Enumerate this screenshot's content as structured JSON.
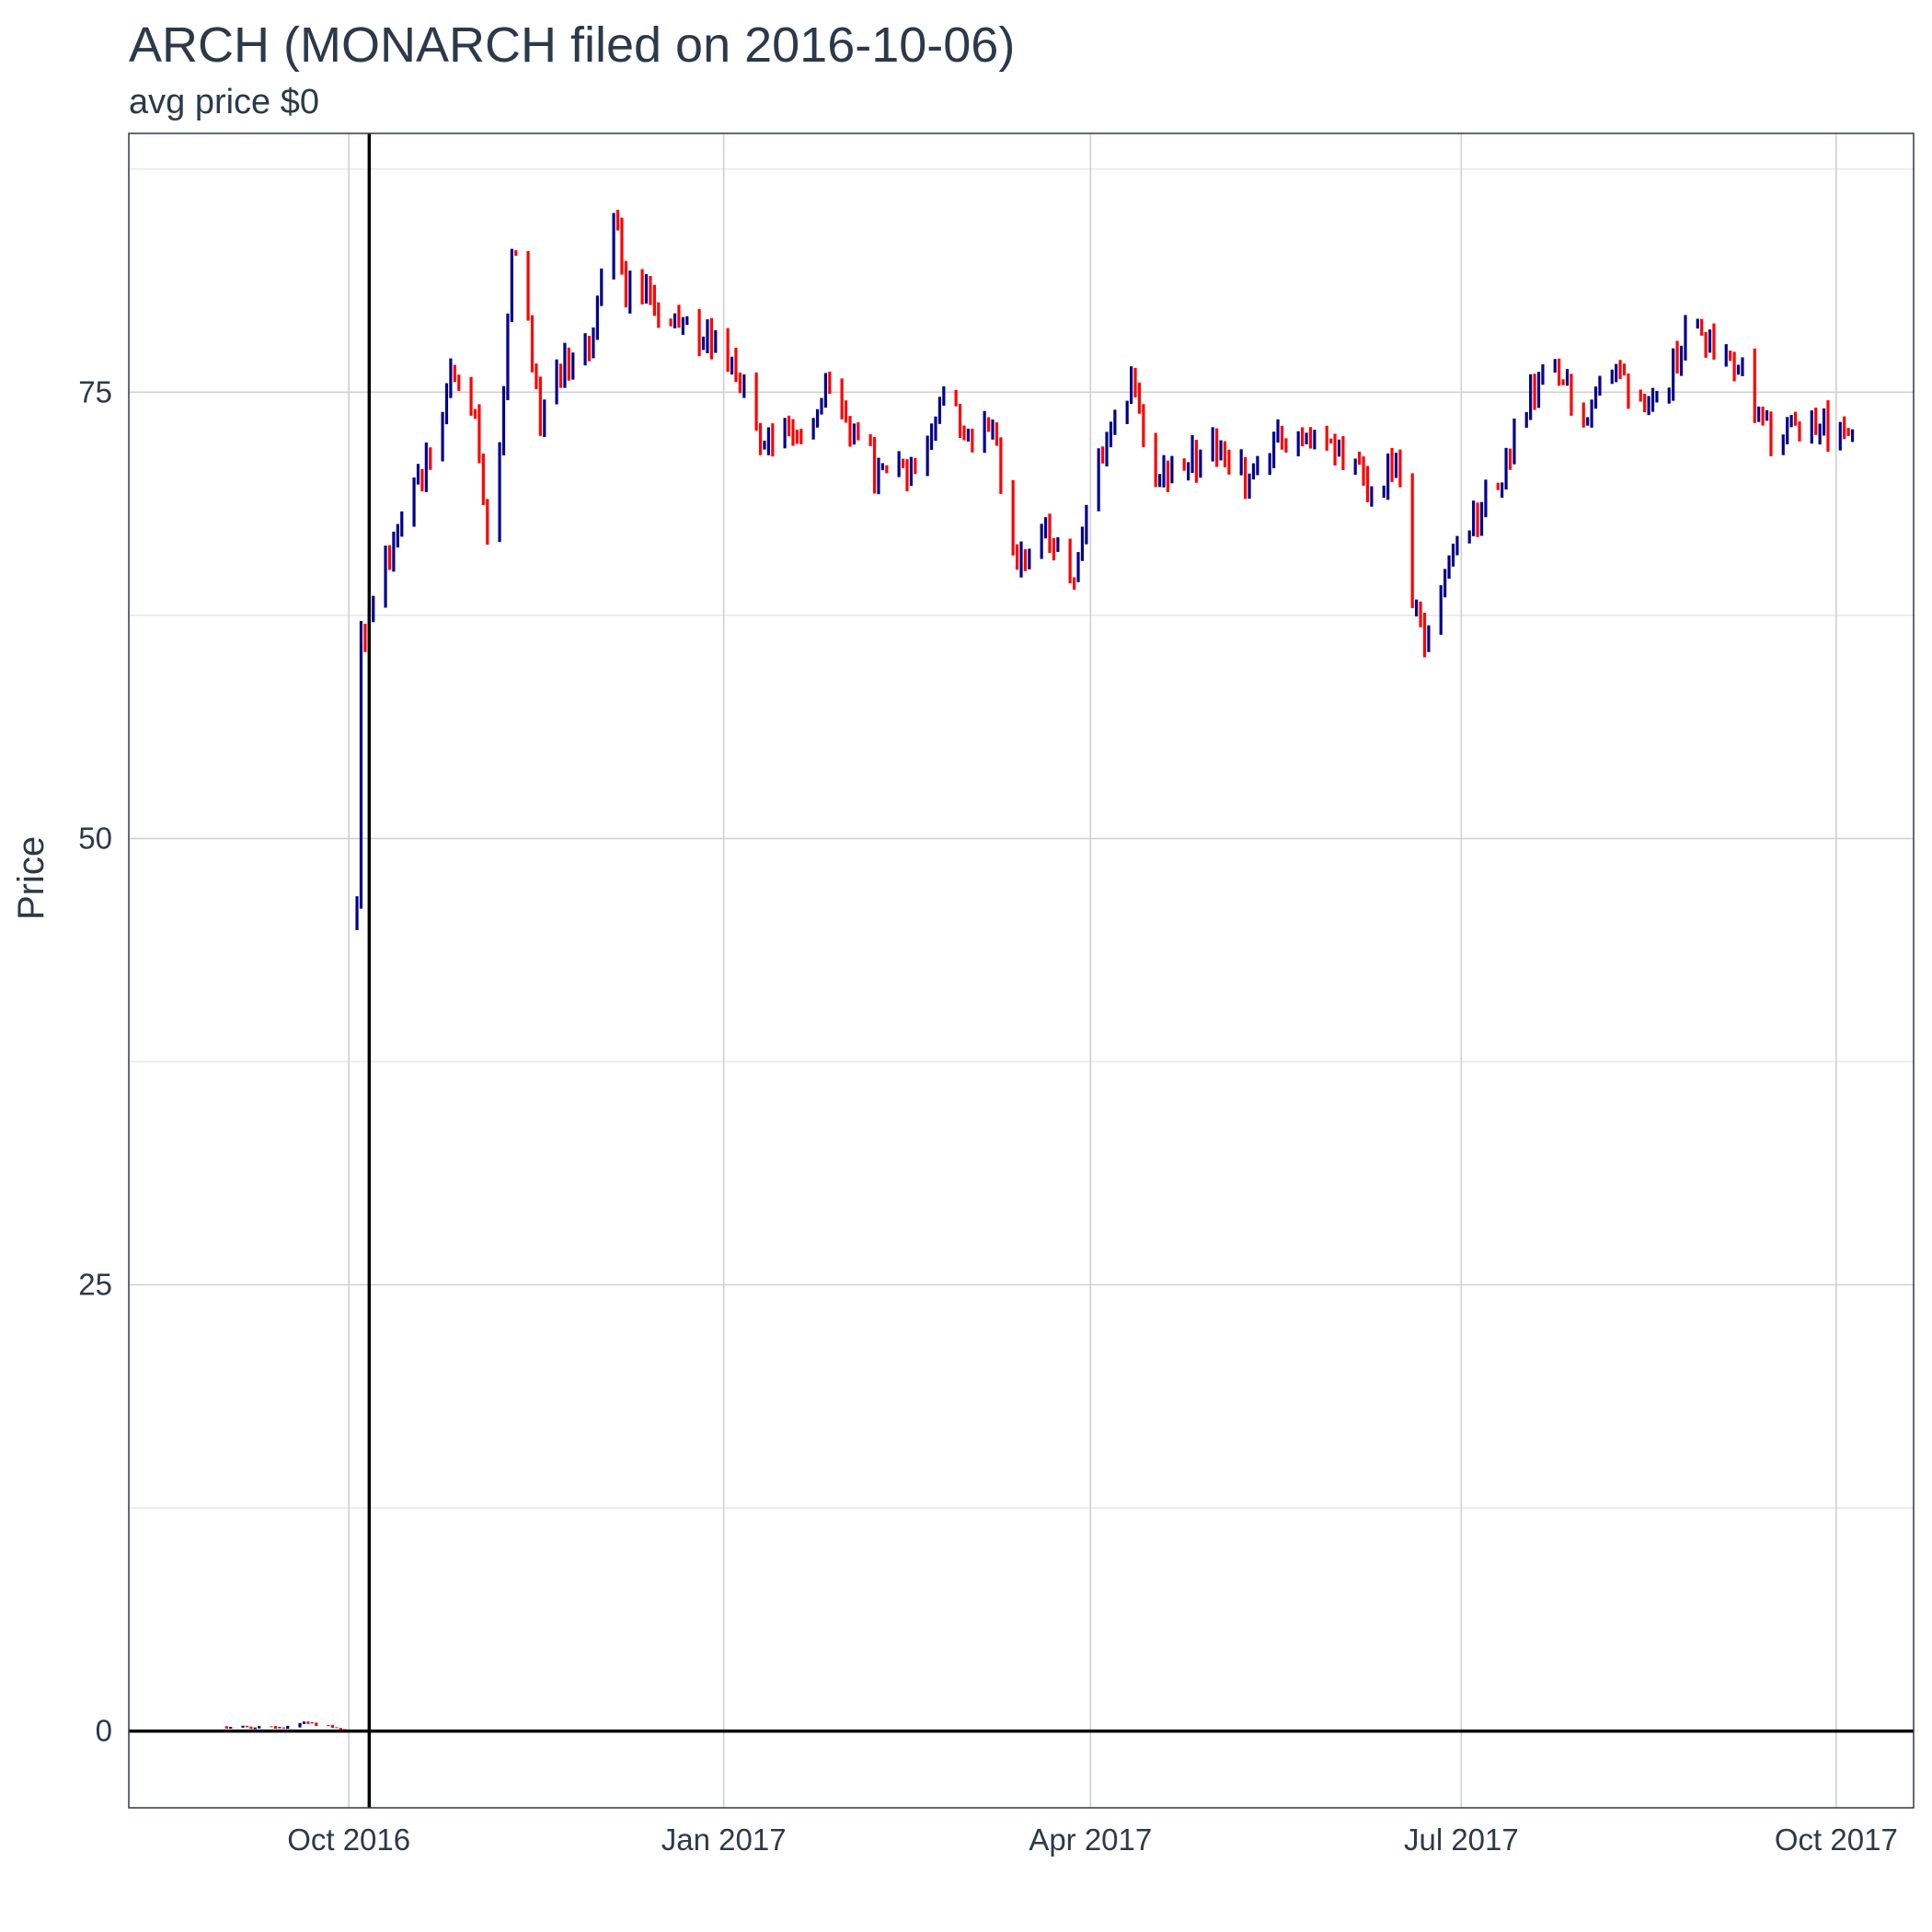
{
  "chart_data": {
    "type": "ohlc",
    "title": "ARCH (MONARCH filed on 2016-10-06)",
    "subtitle": "avg price $0",
    "xlabel": "",
    "ylabel": "Price",
    "ylim": [
      -4.3,
      89.5
    ],
    "xlim": [
      "2016-08-08",
      "2017-10-20"
    ],
    "grid": true,
    "legend": "none",
    "up_color": "#00008b",
    "down_color": "#ff0000",
    "reference_lines": {
      "vertical_date": "2016-10-06",
      "horizontal_value": 0
    },
    "y_ticks": [
      0,
      25,
      50,
      75
    ],
    "x_ticks": [
      {
        "date": "2016-10-01",
        "label": "Oct 2016"
      },
      {
        "date": "2017-01-01",
        "label": "Jan 2017"
      },
      {
        "date": "2017-04-01",
        "label": "Apr 2017"
      },
      {
        "date": "2017-07-01",
        "label": "Jul 2017"
      },
      {
        "date": "2017-10-01",
        "label": "Oct 2017"
      }
    ],
    "anchors": [
      [
        "2016-09-01",
        0.2
      ],
      [
        "2016-09-15",
        0.2
      ],
      [
        "2016-09-20",
        0.5
      ],
      [
        "2016-09-30",
        0.1
      ],
      [
        "2016-10-04",
        61.0
      ],
      [
        "2016-10-10",
        66.0
      ],
      [
        "2016-10-20",
        71.0
      ],
      [
        "2016-10-27",
        76.0
      ],
      [
        "2016-11-01",
        73.0
      ],
      [
        "2016-11-04",
        67.0
      ],
      [
        "2016-11-08",
        74.0
      ],
      [
        "2016-11-10",
        83.0
      ],
      [
        "2016-11-14",
        79.0
      ],
      [
        "2016-11-17",
        73.0
      ],
      [
        "2016-11-22",
        76.0
      ],
      [
        "2016-11-29",
        78.0
      ],
      [
        "2016-12-05",
        85.0
      ],
      [
        "2016-12-08",
        81.0
      ],
      [
        "2016-12-14",
        80.0
      ],
      [
        "2016-12-20",
        78.5
      ],
      [
        "2016-12-29",
        78.0
      ],
      [
        "2017-01-03",
        77.0
      ],
      [
        "2017-01-06",
        75.0
      ],
      [
        "2017-01-10",
        72.0
      ],
      [
        "2017-01-13",
        73.0
      ],
      [
        "2017-01-20",
        72.5
      ],
      [
        "2017-01-25",
        75.0
      ],
      [
        "2017-02-03",
        72.0
      ],
      [
        "2017-02-10",
        70.0
      ],
      [
        "2017-02-17",
        71.0
      ],
      [
        "2017-02-24",
        75.5
      ],
      [
        "2017-03-01",
        73.0
      ],
      [
        "2017-03-07",
        73.5
      ],
      [
        "2017-03-10",
        70.0
      ],
      [
        "2017-03-14",
        65.0
      ],
      [
        "2017-03-21",
        67.0
      ],
      [
        "2017-03-27",
        64.0
      ],
      [
        "2017-03-31",
        69.0
      ],
      [
        "2017-04-07",
        73.0
      ],
      [
        "2017-04-11",
        76.0
      ],
      [
        "2017-04-17",
        71.0
      ],
      [
        "2017-04-24",
        71.0
      ],
      [
        "2017-05-03",
        72.0
      ],
      [
        "2017-05-10",
        70.0
      ],
      [
        "2017-05-16",
        72.0
      ],
      [
        "2017-05-22",
        73.0
      ],
      [
        "2017-05-31",
        71.5
      ],
      [
        "2017-06-06",
        70.0
      ],
      [
        "2017-06-09",
        69.0
      ],
      [
        "2017-06-15",
        71.0
      ],
      [
        "2017-06-19",
        63.0
      ],
      [
        "2017-06-22",
        61.0
      ],
      [
        "2017-06-27",
        65.0
      ],
      [
        "2017-07-05",
        68.0
      ],
      [
        "2017-07-12",
        71.0
      ],
      [
        "2017-07-18",
        74.5
      ],
      [
        "2017-07-24",
        76.0
      ],
      [
        "2017-07-31",
        74.0
      ],
      [
        "2017-08-07",
        76.5
      ],
      [
        "2017-08-14",
        75.0
      ],
      [
        "2017-08-21",
        76.0
      ],
      [
        "2017-08-25",
        78.5
      ],
      [
        "2017-08-31",
        78.0
      ],
      [
        "2017-09-06",
        77.0
      ],
      [
        "2017-09-12",
        74.0
      ],
      [
        "2017-09-15",
        72.0
      ],
      [
        "2017-09-20",
        72.5
      ],
      [
        "2017-09-25",
        73.5
      ],
      [
        "2017-10-05",
        72.0
      ]
    ]
  }
}
